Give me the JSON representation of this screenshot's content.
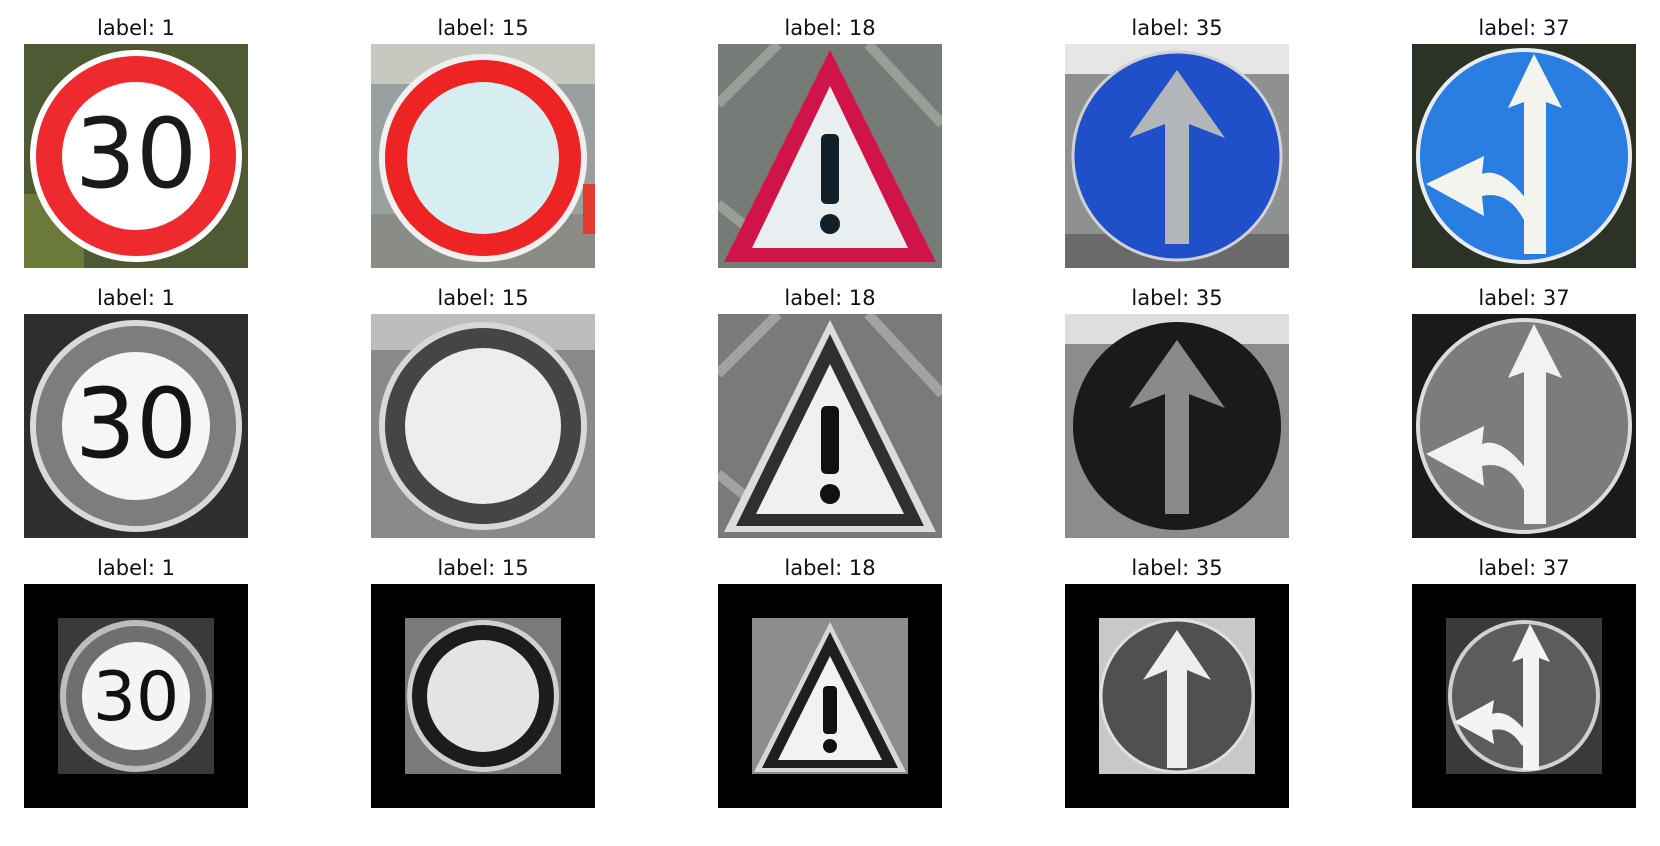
{
  "label_prefix": "label: ",
  "columns": [
    {
      "label": "1",
      "sign": "speed-limit-30",
      "number": "30"
    },
    {
      "label": "15",
      "sign": "no-vehicles"
    },
    {
      "label": "18",
      "sign": "general-caution"
    },
    {
      "label": "35",
      "sign": "ahead-only"
    },
    {
      "label": "37",
      "sign": "go-straight-or-left"
    }
  ],
  "rows": [
    {
      "name": "original-color"
    },
    {
      "name": "grayscale"
    },
    {
      "name": "grayscale-equalized-padded"
    }
  ],
  "titles": [
    [
      "label: 1",
      "label: 15",
      "label: 18",
      "label: 35",
      "label: 37"
    ],
    [
      "label: 1",
      "label: 15",
      "label: 18",
      "label: 35",
      "label: 37"
    ],
    [
      "label: 1",
      "label: 15",
      "label: 18",
      "label: 35",
      "label: 37"
    ]
  ],
  "colors": {
    "red": "#e8262a",
    "white": "#f7f7f7",
    "blue": "#1f4fc9",
    "light_blue": "#2b7be0",
    "pale_cyan": "#d8f0f2",
    "crimson": "#cc1645",
    "black": "#000000"
  }
}
